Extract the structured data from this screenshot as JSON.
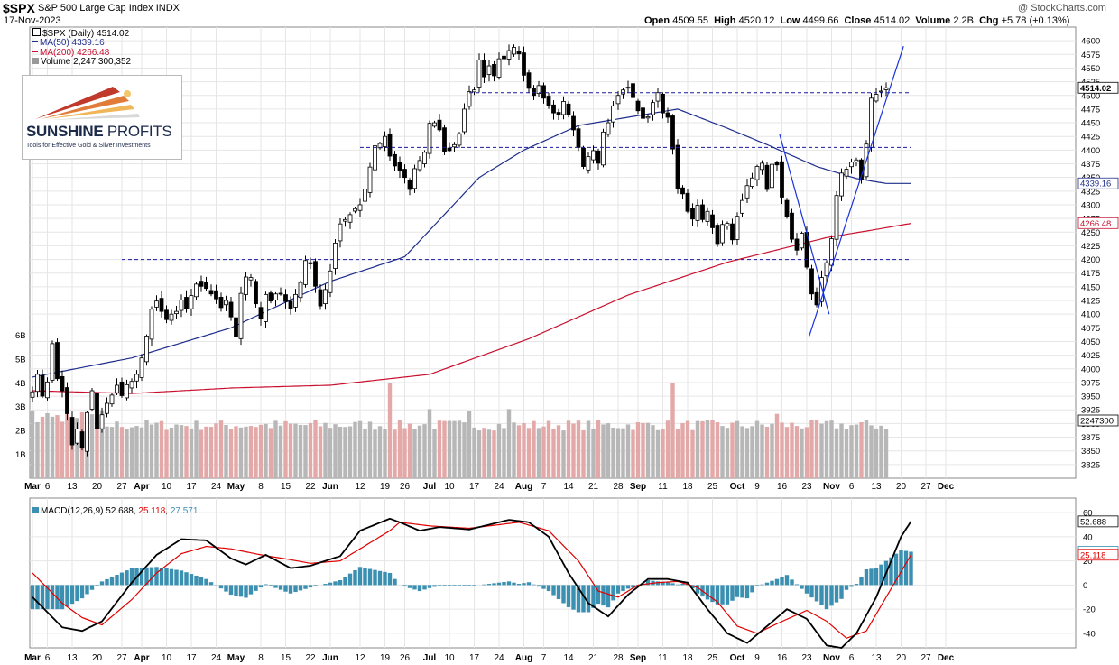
{
  "header": {
    "symbol": "$SPX",
    "name": "S&P 500 Large Cap Index",
    "exchange": "INDX",
    "date": "17-Nov-2023",
    "watermark": "@ StockCharts.com",
    "open_label": "Open",
    "open": "4509.55",
    "high_label": "High",
    "high": "4520.12",
    "low_label": "Low",
    "low": "4499.66",
    "close_label": "Close",
    "close": "4514.02",
    "volume_label": "Volume",
    "volume": "2.2B",
    "chg_label": "Chg",
    "chg": "+5.78 (+0.13%)"
  },
  "legend": {
    "price": "$SPX (Daily) 4514.02",
    "ma50": "MA(50) 4339.16",
    "ma200": "MA(200) 4266.48",
    "volume": "Volume 2,247,300,352"
  },
  "logo": {
    "name_bold": "SUNSHINE",
    "name_rest": " PROFITS",
    "tagline": "Tools for Effective Gold & Silver Investments"
  },
  "colors": {
    "up": "#ffffff",
    "down": "#000000",
    "ma50": "#1f2e8c",
    "ma200": "#c8102e",
    "vol_up": "#b7b7b7",
    "vol_down": "#e3a8a8",
    "macd": "#000000",
    "signal": "#e00000",
    "hist": "#3b8fb0",
    "hlines": "#1a1a9c",
    "trend": "#1a33d9",
    "grid": "#e6e6e6"
  },
  "chart_data": [
    {
      "type": "candlestick",
      "title": "$SPX (Daily)",
      "ylim": [
        3800,
        4625
      ],
      "y_ticks": [
        3825,
        3850,
        3875,
        3900,
        3925,
        3950,
        3975,
        4000,
        4025,
        4050,
        4075,
        4100,
        4125,
        4150,
        4175,
        4200,
        4225,
        4250,
        4275,
        4300,
        4325,
        4350,
        4375,
        4400,
        4425,
        4450,
        4475,
        4500,
        4525,
        4550,
        4575,
        4600
      ],
      "x_ticks": [
        {
          "label": "Mar",
          "i": 0
        },
        {
          "label": "6",
          "i": 3
        },
        {
          "label": "13",
          "i": 8
        },
        {
          "label": "20",
          "i": 13
        },
        {
          "label": "27",
          "i": 18
        },
        {
          "label": "Apr",
          "i": 22
        },
        {
          "label": "10",
          "i": 27
        },
        {
          "label": "17",
          "i": 32
        },
        {
          "label": "24",
          "i": 37
        },
        {
          "label": "May",
          "i": 41
        },
        {
          "label": "8",
          "i": 46
        },
        {
          "label": "15",
          "i": 51
        },
        {
          "label": "22",
          "i": 56
        },
        {
          "label": "Jun",
          "i": 60
        },
        {
          "label": "12",
          "i": 66
        },
        {
          "label": "19",
          "i": 71
        },
        {
          "label": "26",
          "i": 75
        },
        {
          "label": "Jul",
          "i": 80
        },
        {
          "label": "10",
          "i": 84
        },
        {
          "label": "17",
          "i": 89
        },
        {
          "label": "24",
          "i": 94
        },
        {
          "label": "Aug",
          "i": 99
        },
        {
          "label": "7",
          "i": 103
        },
        {
          "label": "14",
          "i": 108
        },
        {
          "label": "21",
          "i": 113
        },
        {
          "label": "28",
          "i": 118
        },
        {
          "label": "Sep",
          "i": 122
        },
        {
          "label": "11",
          "i": 127
        },
        {
          "label": "18",
          "i": 132
        },
        {
          "label": "25",
          "i": 137
        },
        {
          "label": "Oct",
          "i": 142
        },
        {
          "label": "9",
          "i": 146
        },
        {
          "label": "16",
          "i": 151
        },
        {
          "label": "23",
          "i": 156
        },
        {
          "label": "Nov",
          "i": 161
        },
        {
          "label": "6",
          "i": 165
        },
        {
          "label": "13",
          "i": 170
        },
        {
          "label": "20",
          "i": 175
        },
        {
          "label": "27",
          "i": 180
        },
        {
          "label": "Dec",
          "i": 184
        }
      ],
      "closes": [
        3958,
        3990,
        3950,
        3976,
        4046,
        3982,
        3960,
        3918,
        3861,
        3890,
        3855,
        3920,
        3960,
        3891,
        3916,
        3937,
        3952,
        3970,
        3951,
        3971,
        3977,
        3990,
        4020,
        4060,
        4109,
        4124,
        4105,
        4090,
        4100,
        4105,
        4126,
        4110,
        4134,
        4155,
        4151,
        4147,
        4137,
        4128,
        4112,
        4125,
        4095,
        4059,
        4138,
        4168,
        4167,
        4119,
        4091,
        4136,
        4124,
        4137,
        4138,
        4123,
        4110,
        4136,
        4158,
        4198,
        4192,
        4151,
        4115,
        4145,
        4179,
        4230,
        4265,
        4273,
        4282,
        4293,
        4300,
        4329,
        4369,
        4408,
        4412,
        4425,
        4389,
        4371,
        4362,
        4350,
        4328,
        4366,
        4381,
        4396,
        4449,
        4450,
        4437,
        4398,
        4399,
        4410,
        4430,
        4475,
        4507,
        4510,
        4565,
        4534,
        4554,
        4536,
        4567,
        4567,
        4582,
        4588,
        4576,
        4537,
        4513,
        4500,
        4518,
        4495,
        4481,
        4468,
        4464,
        4489,
        4464,
        4437,
        4405,
        4370,
        4388,
        4399,
        4376,
        4433,
        4450,
        4481,
        4500,
        4510,
        4515,
        4496,
        4472,
        4458,
        4461,
        4487,
        4505,
        4468,
        4460,
        4402,
        4330,
        4320,
        4288,
        4274,
        4299,
        4273,
        4288,
        4258,
        4229,
        4264,
        4266,
        4236,
        4279,
        4308,
        4335,
        4349,
        4370,
        4376,
        4328,
        4374,
        4373,
        4314,
        4278,
        4237,
        4217,
        4248,
        4186,
        4137,
        4117,
        4167,
        4194,
        4238,
        4317,
        4358,
        4365,
        4378,
        4382,
        4347,
        4411,
        4495,
        4502,
        4508,
        4514
      ],
      "lines": [
        {
          "name": "MA(50)",
          "key": "ma50",
          "anchors": [
            [
              0,
              3985
            ],
            [
              20,
              4020
            ],
            [
              40,
              4075
            ],
            [
              60,
              4160
            ],
            [
              75,
              4205
            ],
            [
              90,
              4350
            ],
            [
              99,
              4400
            ],
            [
              110,
              4445
            ],
            [
              120,
              4460
            ],
            [
              130,
              4475
            ],
            [
              140,
              4440
            ],
            [
              148,
              4410
            ],
            [
              158,
              4370
            ],
            [
              166,
              4348
            ],
            [
              172,
              4339
            ],
            [
              177,
              4339
            ]
          ]
        },
        {
          "name": "MA(200)",
          "key": "ma200",
          "anchors": [
            [
              0,
              3960
            ],
            [
              20,
              3955
            ],
            [
              40,
              3965
            ],
            [
              60,
              3970
            ],
            [
              80,
              3990
            ],
            [
              100,
              4055
            ],
            [
              120,
              4135
            ],
            [
              140,
              4195
            ],
            [
              160,
              4240
            ],
            [
              170,
              4255
            ],
            [
              177,
              4266
            ]
          ]
        }
      ],
      "hlines": [
        {
          "y": 4505,
          "i0": 88,
          "i1": 177
        },
        {
          "y": 4405,
          "i0": 66,
          "i1": 177
        },
        {
          "y": 4200,
          "i0": 18,
          "i1": 177
        }
      ],
      "trendlines": [
        {
          "i0": 150.5,
          "y0": 4430,
          "i1": 160.5,
          "y1": 4100
        },
        {
          "i0": 156.5,
          "y0": 4060,
          "i1": 175.5,
          "y1": 4590
        }
      ],
      "right_labels": [
        {
          "value": 4514.02,
          "text": "4514.02",
          "style": "bold"
        },
        {
          "value": 4339.16,
          "text": "4339.16",
          "style": "ma50"
        },
        {
          "value": 4266.48,
          "text": "4266.48",
          "style": "ma200"
        }
      ]
    },
    {
      "type": "bar",
      "title": "Volume",
      "ylim": [
        0,
        7
      ],
      "y_ticks": [
        {
          "v": 1,
          "label": "1B"
        },
        {
          "v": 2,
          "label": "2B"
        },
        {
          "v": 3,
          "label": "3B"
        },
        {
          "v": 4,
          "label": "4B"
        },
        {
          "v": 5,
          "label": "5B"
        },
        {
          "v": 6,
          "label": "6B"
        }
      ],
      "spikes": [
        {
          "i": 72,
          "v": 4.0
        },
        {
          "i": 80,
          "v": 2.9
        },
        {
          "i": 88,
          "v": 2.8
        },
        {
          "i": 96,
          "v": 2.9
        },
        {
          "i": 129,
          "v": 4.0
        },
        {
          "i": 150,
          "v": 2.7
        }
      ],
      "last_label": "2247300"
    },
    {
      "type": "line",
      "title": "MACD(12,26,9)",
      "legend": {
        "name": "MACD(12,26,9)",
        "macd": "52.688",
        "signal": "25.118",
        "hist": "27.571"
      },
      "ylim": [
        -52,
        72
      ],
      "y_ticks": [
        -40,
        -20,
        0,
        20,
        40,
        60
      ],
      "macd_anchors": [
        [
          0,
          -10
        ],
        [
          6,
          -35
        ],
        [
          10,
          -38
        ],
        [
          14,
          -30
        ],
        [
          20,
          2
        ],
        [
          25,
          25
        ],
        [
          30,
          38
        ],
        [
          35,
          37
        ],
        [
          40,
          22
        ],
        [
          43,
          17
        ],
        [
          47,
          25
        ],
        [
          52,
          14
        ],
        [
          56,
          16
        ],
        [
          62,
          24
        ],
        [
          66,
          45
        ],
        [
          72,
          55
        ],
        [
          74,
          52
        ],
        [
          78,
          45
        ],
        [
          82,
          48
        ],
        [
          88,
          46
        ],
        [
          92,
          50
        ],
        [
          96,
          54
        ],
        [
          100,
          52
        ],
        [
          104,
          40
        ],
        [
          108,
          10
        ],
        [
          112,
          -15
        ],
        [
          116,
          -26
        ],
        [
          120,
          -8
        ],
        [
          124,
          5
        ],
        [
          128,
          5
        ],
        [
          132,
          2
        ],
        [
          136,
          -20
        ],
        [
          140,
          -40
        ],
        [
          144,
          -48
        ],
        [
          148,
          -34
        ],
        [
          152,
          -20
        ],
        [
          156,
          -28
        ],
        [
          160,
          -50
        ],
        [
          163,
          -52
        ],
        [
          166,
          -40
        ],
        [
          170,
          -10
        ],
        [
          175,
          40
        ],
        [
          177,
          52.7
        ]
      ],
      "signal_anchors": [
        [
          0,
          10
        ],
        [
          6,
          -15
        ],
        [
          10,
          -27
        ],
        [
          14,
          -33
        ],
        [
          20,
          -12
        ],
        [
          25,
          10
        ],
        [
          30,
          26
        ],
        [
          35,
          32
        ],
        [
          40,
          30
        ],
        [
          46,
          25
        ],
        [
          52,
          21
        ],
        [
          56,
          18
        ],
        [
          62,
          20
        ],
        [
          66,
          30
        ],
        [
          72,
          45
        ],
        [
          74,
          52
        ],
        [
          80,
          49
        ],
        [
          88,
          47
        ],
        [
          94,
          50
        ],
        [
          98,
          52
        ],
        [
          104,
          45
        ],
        [
          110,
          20
        ],
        [
          114,
          -5
        ],
        [
          118,
          -10
        ],
        [
          122,
          0
        ],
        [
          126,
          2
        ],
        [
          130,
          3
        ],
        [
          134,
          -2
        ],
        [
          138,
          -14
        ],
        [
          142,
          -34
        ],
        [
          146,
          -40
        ],
        [
          150,
          -32
        ],
        [
          156,
          -21
        ],
        [
          160,
          -30
        ],
        [
          164,
          -44
        ],
        [
          168,
          -38
        ],
        [
          172,
          -10
        ],
        [
          177,
          25.1
        ]
      ],
      "right_labels": [
        {
          "value": 52.688,
          "text": "52.688",
          "style": "macd"
        },
        {
          "value": 27.571,
          "text": "27.571",
          "style": "hist"
        },
        {
          "value": 25.118,
          "text": "25.118",
          "style": "signal"
        }
      ]
    }
  ]
}
